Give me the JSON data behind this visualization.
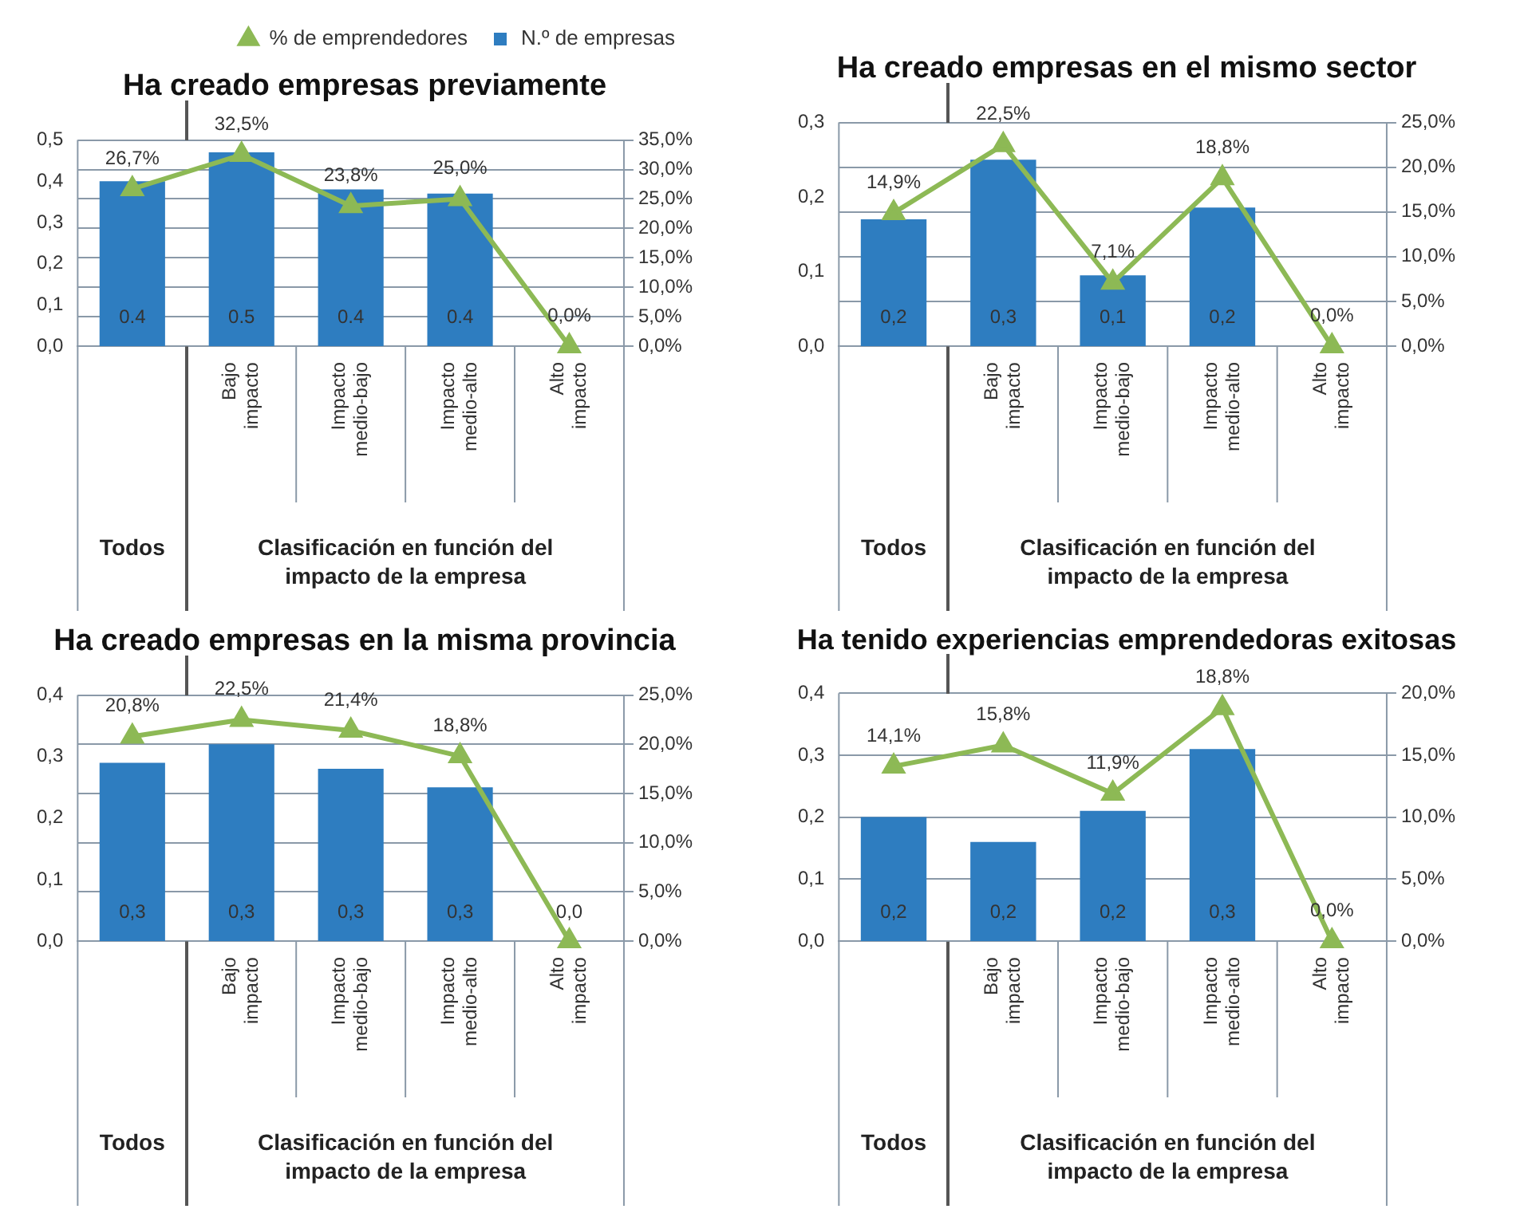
{
  "chart_data": [
    {
      "type": "bar",
      "title": "Ha creado empresas previamente",
      "legend": "top right",
      "grid": "y",
      "marker": "triangle",
      "xlabel": "Clasificación en función del impacto de la empresa",
      "annotations": [
        "Todos"
      ],
      "categories": [
        null,
        "Bajo impacto",
        "Impacto medio-bajo",
        "Impacto medio-alto",
        "Alto impacto"
      ],
      "ylim": [
        0,
        0.5
      ],
      "yticks": [
        {
          "value": 0,
          "label": "0,0"
        },
        {
          "value": 0.1,
          "label": "0,1"
        },
        {
          "value": 0.2,
          "label": "0,2"
        },
        {
          "value": 0.3,
          "label": "0,3"
        },
        {
          "value": 0.4,
          "label": "0,4"
        },
        {
          "value": 0.5,
          "label": "0,5"
        }
      ],
      "y2lim": [
        0,
        35
      ],
      "y2ticks": [
        {
          "value": 0,
          "label": "0,0%"
        },
        {
          "value": 5,
          "label": "5,0%"
        },
        {
          "value": 10,
          "label": "10,0%"
        },
        {
          "value": 15,
          "label": "15,0%"
        },
        {
          "value": 20,
          "label": "20,0%"
        },
        {
          "value": 25,
          "label": "25,0%"
        },
        {
          "value": 30,
          "label": "30,0%"
        },
        {
          "value": 35,
          "label": "35,0%"
        }
      ],
      "series": [
        {
          "name": "% de emprendedores",
          "type": "line",
          "axis": "y2",
          "color": "#8db955",
          "values": [
            26.7,
            32.5,
            23.8,
            25.0,
            0.0
          ],
          "value_labels": [
            "26,7%",
            "32,5%",
            "23,8%",
            "25,0%",
            "0,0%"
          ]
        },
        {
          "name": "N.º de empresas",
          "color": "#2e7dc0",
          "values": [
            0.4,
            0.47,
            0.38,
            0.37,
            0
          ],
          "value_labels": [
            "0.4",
            "0.5",
            "0.4",
            "0.4",
            null
          ]
        }
      ]
    },
    {
      "type": "bar",
      "title": "Ha creado empresas en el mismo sector",
      "legend": false,
      "grid": "y",
      "marker": "triangle",
      "xlabel": "Clasificación en función del impacto de la empresa",
      "annotations": [
        "Todos"
      ],
      "categories": [
        null,
        "Bajo impacto",
        "Impacto medio-bajo",
        "Impacto medio-alto",
        "Alto impacto"
      ],
      "ylim": [
        0,
        0.3
      ],
      "yticks": [
        {
          "value": 0,
          "label": "0,0"
        },
        {
          "value": 0.1,
          "label": "0,1"
        },
        {
          "value": 0.2,
          "label": "0,2"
        },
        {
          "value": 0.3,
          "label": "0,3"
        }
      ],
      "y2lim": [
        0,
        25
      ],
      "y2ticks": [
        {
          "value": 0,
          "label": "0,0%"
        },
        {
          "value": 5,
          "label": "5,0%"
        },
        {
          "value": 10,
          "label": "10,0%"
        },
        {
          "value": 15,
          "label": "15,0%"
        },
        {
          "value": 20,
          "label": "20,0%"
        },
        {
          "value": 25,
          "label": "25,0%"
        }
      ],
      "series": [
        {
          "type": "line",
          "axis": "y2",
          "color": "#8db955",
          "values": [
            14.9,
            22.5,
            7.1,
            18.8,
            0.0
          ],
          "value_labels": [
            "14,9%",
            "22,5%",
            "7,1%",
            "18,8%",
            "0,0%"
          ]
        },
        {
          "color": "#2e7dc0",
          "values": [
            0.17,
            0.25,
            0.095,
            0.186,
            0
          ],
          "value_labels": [
            "0,2",
            "0,3",
            "0,1",
            "0,2",
            null
          ]
        }
      ]
    },
    {
      "type": "bar",
      "title": "Ha creado empresas en la misma provincia",
      "legend": false,
      "grid": "y",
      "marker": "triangle",
      "xlabel": "Clasificación en función del impacto de la empresa",
      "annotations": [
        "Todos"
      ],
      "categories": [
        null,
        "Bajo impacto",
        "Impacto medio-bajo",
        "Impacto medio-alto",
        "Alto impacto"
      ],
      "ylim": [
        0,
        0.4
      ],
      "yticks": [
        {
          "value": 0,
          "label": "0,0"
        },
        {
          "value": 0.1,
          "label": "0,1"
        },
        {
          "value": 0.2,
          "label": "0,2"
        },
        {
          "value": 0.3,
          "label": "0,3"
        },
        {
          "value": 0.4,
          "label": "0,4"
        }
      ],
      "y2lim": [
        0,
        25
      ],
      "y2ticks": [
        {
          "value": 0,
          "label": "0,0%"
        },
        {
          "value": 5,
          "label": "5,0%"
        },
        {
          "value": 10,
          "label": "10,0%"
        },
        {
          "value": 15,
          "label": "15,0%"
        },
        {
          "value": 20,
          "label": "20,0%"
        },
        {
          "value": 25,
          "label": "25,0%"
        }
      ],
      "series": [
        {
          "type": "line",
          "axis": "y2",
          "color": "#8db955",
          "values": [
            20.8,
            22.5,
            21.4,
            18.8,
            0.0
          ],
          "value_labels": [
            "20,8%",
            "22,5%",
            "21,4%",
            "18,8%",
            null
          ]
        },
        {
          "color": "#2e7dc0",
          "values": [
            0.29,
            0.32,
            0.28,
            0.25,
            0
          ],
          "value_labels": [
            "0,3",
            "0,3",
            "0,3",
            "0,3",
            "0,0"
          ]
        }
      ]
    },
    {
      "type": "bar",
      "title": "Ha tenido experiencias emprendedoras exitosas",
      "legend": false,
      "grid": "y",
      "marker": "triangle",
      "xlabel": "Clasificación en función del impacto de la empresa",
      "annotations": [
        "Todos"
      ],
      "categories": [
        null,
        "Bajo impacto",
        "Impacto medio-bajo",
        "Impacto medio-alto",
        "Alto impacto"
      ],
      "ylim": [
        0,
        0.4
      ],
      "yticks": [
        {
          "value": 0,
          "label": "0,0"
        },
        {
          "value": 0.1,
          "label": "0,1"
        },
        {
          "value": 0.2,
          "label": "0,2"
        },
        {
          "value": 0.3,
          "label": "0,3"
        },
        {
          "value": 0.4,
          "label": "0,4"
        }
      ],
      "y2lim": [
        0,
        20
      ],
      "y2ticks": [
        {
          "value": 0,
          "label": "0,0%"
        },
        {
          "value": 5,
          "label": "5,0%"
        },
        {
          "value": 10,
          "label": "10,0%"
        },
        {
          "value": 15,
          "label": "15,0%"
        },
        {
          "value": 20,
          "label": "20,0%"
        }
      ],
      "series": [
        {
          "type": "line",
          "axis": "y2",
          "color": "#8db955",
          "values": [
            14.1,
            15.8,
            11.9,
            18.8,
            0.0
          ],
          "value_labels": [
            "14,1%",
            "15,8%",
            "11,9%",
            "18,8%",
            "0,0%"
          ]
        },
        {
          "color": "#2e7dc0",
          "values": [
            0.2,
            0.16,
            0.21,
            0.31,
            0
          ],
          "value_labels": [
            "0,2",
            "0,2",
            "0,2",
            "0,3",
            null
          ]
        }
      ]
    }
  ]
}
